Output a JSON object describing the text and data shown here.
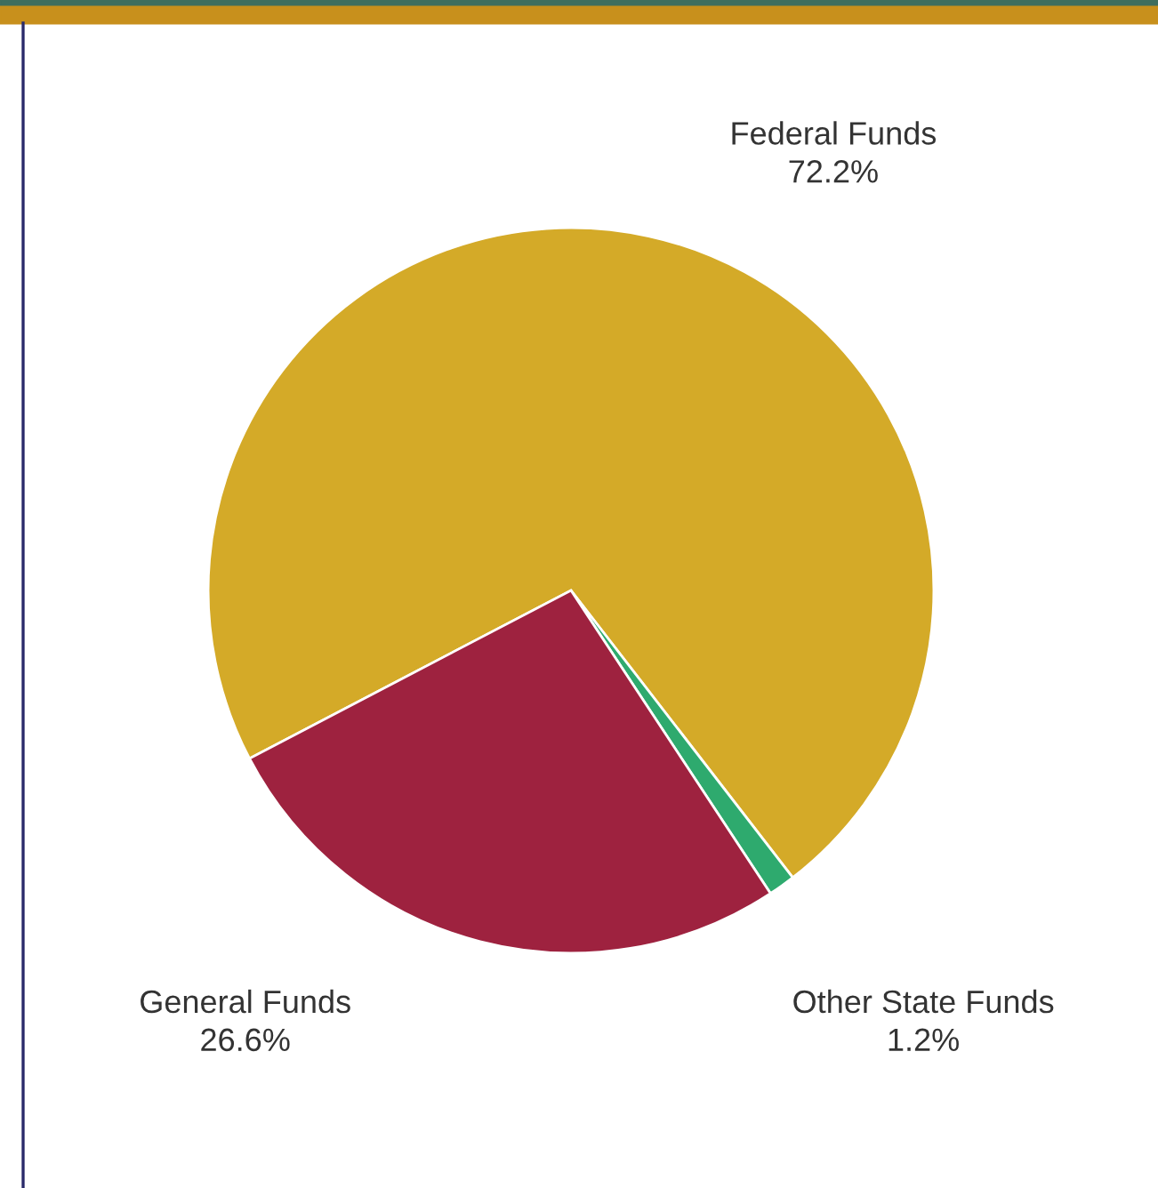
{
  "chart_data": {
    "type": "pie",
    "categories": [
      "Federal Funds",
      "Other State Funds",
      "General Funds"
    ],
    "values": [
      72.2,
      1.2,
      26.6
    ],
    "value_labels": [
      "72.2%",
      "1.2%",
      "26.6%"
    ],
    "colors": [
      "#d4aa28",
      "#2eaa6e",
      "#9e223f"
    ]
  }
}
